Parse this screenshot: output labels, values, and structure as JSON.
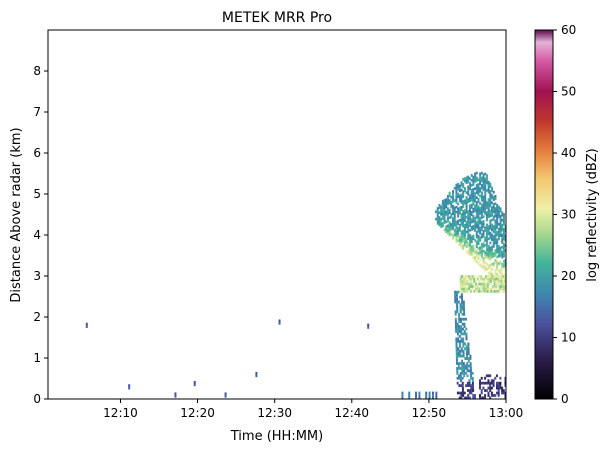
{
  "chart_data": {
    "type": "heatmap",
    "title": "METEK MRR Pro",
    "xlabel": "Time (HH:MM)",
    "ylabel": "Distance Above radar  (km)",
    "x_ticks": [
      "12:10",
      "12:20",
      "12:30",
      "12:40",
      "12:50",
      "13:00"
    ],
    "x_tick_minutes": [
      10,
      20,
      30,
      40,
      50,
      60
    ],
    "xlim_minutes_after_1200": [
      0.6,
      60
    ],
    "y_ticks": [
      0,
      1,
      2,
      3,
      4,
      5,
      6,
      7,
      8
    ],
    "ylim": [
      0,
      9
    ],
    "colorbar": {
      "label": "log reflectivity (dBZ)",
      "ticks": [
        0,
        10,
        20,
        30,
        40,
        50,
        60
      ],
      "range": [
        0,
        60
      ],
      "colormap": "cubehelix-like (black, purple, blue, teal, green, yellow, orange, red, magenta, pink)",
      "stops": [
        {
          "value": 0,
          "color": "#000000"
        },
        {
          "value": 6,
          "color": "#2a1a45"
        },
        {
          "value": 12,
          "color": "#4b4e9a"
        },
        {
          "value": 17,
          "color": "#3f86b1"
        },
        {
          "value": 22,
          "color": "#42b39a"
        },
        {
          "value": 27,
          "color": "#a9d98f"
        },
        {
          "value": 31,
          "color": "#f1f0a8"
        },
        {
          "value": 36,
          "color": "#f3c56e"
        },
        {
          "value": 40,
          "color": "#e6843f"
        },
        {
          "value": 45,
          "color": "#c0392b"
        },
        {
          "value": 50,
          "color": "#a01250"
        },
        {
          "value": 55,
          "color": "#d65aa6"
        },
        {
          "value": 58,
          "color": "#e3b3d6"
        },
        {
          "value": 60,
          "color": "#5b0a4a"
        }
      ]
    },
    "features": [
      {
        "name": "isolated echoes",
        "t_minutes": [
          5.5,
          11,
          17,
          19.5,
          23.5,
          27.5,
          30.5,
          42
        ],
        "z_km": [
          1.8,
          0.3,
          0.1,
          0.38,
          0.1,
          0.6,
          1.88,
          1.78
        ],
        "dBZ": 12
      },
      {
        "name": "near-surface clutter",
        "t_range_minutes": [
          46,
          52
        ],
        "z_range_km": [
          0,
          0.15
        ],
        "dBZ": 12
      },
      {
        "name": "upper precipitation band",
        "t_range_minutes": [
          50.8,
          60
        ],
        "z_range_km": [
          2.6,
          5.6
        ],
        "peak_dBZ": 30
      },
      {
        "name": "melting layer",
        "t_range_minutes": [
          54,
          60
        ],
        "z_km": 2.8,
        "peak_dBZ": 32
      },
      {
        "name": "precipitation shaft to surface",
        "t_range_minutes": [
          53.5,
          57
        ],
        "z_range_km": [
          0,
          2.6
        ],
        "dBZ": 15
      }
    ]
  }
}
